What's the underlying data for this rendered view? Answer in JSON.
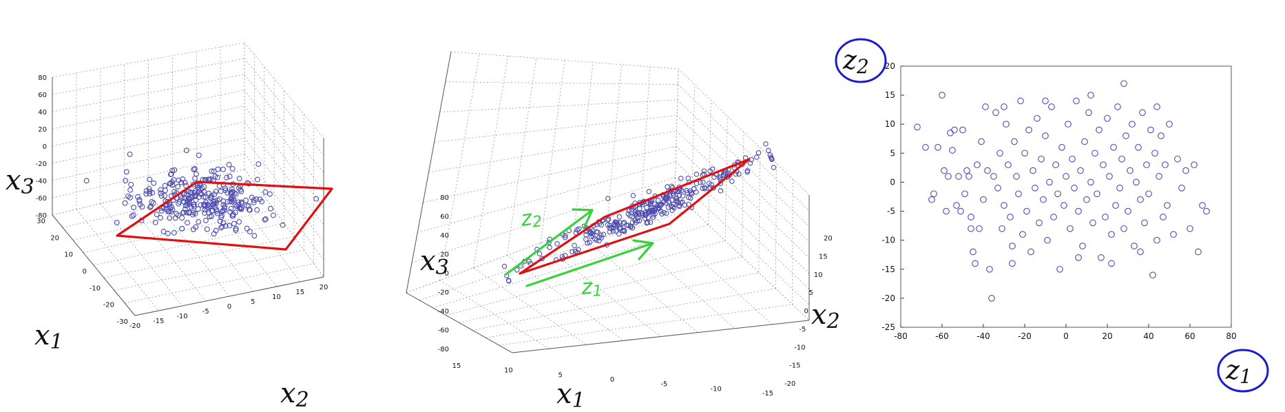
{
  "chart_data": [
    {
      "type": "scatter",
      "subtype": "3d",
      "axis_labels": {
        "x": "x",
        "x_sub": "2",
        "y": "x",
        "y_sub": "1",
        "z": "x",
        "z_sub": "3"
      },
      "xlim": [
        -20,
        20
      ],
      "ylim": [
        -30,
        30
      ],
      "zlim": [
        -80,
        80
      ],
      "x_ticks": [
        "-20",
        "-15",
        "-10",
        "-5",
        "0",
        "5",
        "10",
        "15",
        "20"
      ],
      "y_ticks": [
        "-30",
        "-20",
        "-10",
        "0",
        "10",
        "20",
        "30"
      ],
      "z_ticks": [
        "-80",
        "-60",
        "-40",
        "-20",
        "0",
        "20",
        "40",
        "60",
        "80"
      ],
      "grid": true,
      "annotation": "red outline enclosing flat cloud of points",
      "marker": "open circle",
      "color": "#4b4bb0",
      "n_points": 300
    },
    {
      "type": "scatter",
      "subtype": "3d",
      "axis_labels": {
        "x": "x",
        "x_sub": "1",
        "y": "x",
        "y_sub": "2",
        "z": "x",
        "z_sub": "3"
      },
      "xlim": [
        -15,
        15
      ],
      "ylim": [
        -20,
        20
      ],
      "zlim": [
        -80,
        80
      ],
      "x_ticks": [
        "15",
        "10",
        "5",
        "0",
        "-5",
        "-10",
        "-15"
      ],
      "y_ticks": [
        "-20",
        "-15",
        "-10",
        "-5",
        "0",
        "5",
        "10",
        "15",
        "20"
      ],
      "z_ticks": [
        "80",
        "60",
        "40",
        "20",
        "0",
        "-20",
        "-40",
        "-60",
        "-80"
      ],
      "grid": true,
      "annotations": [
        "z",
        "z"
      ],
      "annotation_subs": [
        "2",
        "1"
      ],
      "marker": "open circle",
      "color": "#4b4bb0",
      "n_points": 300
    },
    {
      "type": "scatter",
      "axis_labels": {
        "x": "z",
        "x_sub": "1",
        "y": "z",
        "y_sub": "2"
      },
      "xlim": [
        -80,
        80
      ],
      "ylim": [
        -25,
        20
      ],
      "x_ticks": [
        "-80",
        "-60",
        "-40",
        "-20",
        "0",
        "20",
        "40",
        "60",
        "80"
      ],
      "y_ticks": [
        "20",
        "15",
        "10",
        "5",
        "0",
        "-5",
        "-10",
        "-15",
        "-20",
        "-25"
      ],
      "grid": false,
      "marker": "open circle",
      "color": "#4b4bb0",
      "points": [
        [
          -72,
          9.5
        ],
        [
          -68,
          6
        ],
        [
          -65,
          -3
        ],
        [
          -64,
          -2
        ],
        [
          -62,
          6
        ],
        [
          -60,
          15
        ],
        [
          -59,
          2
        ],
        [
          -58,
          -5
        ],
        [
          -57,
          1
        ],
        [
          -56,
          8.5
        ],
        [
          -55,
          5.5
        ],
        [
          -54,
          9
        ],
        [
          -53,
          -4
        ],
        [
          -52,
          1
        ],
        [
          -51,
          -5
        ],
        [
          -50,
          9
        ],
        [
          -49,
          -2
        ],
        [
          -48,
          2
        ],
        [
          -47,
          1
        ],
        [
          -46,
          -6
        ],
        [
          -45,
          -12
        ],
        [
          -44,
          -14
        ],
        [
          -43,
          3
        ],
        [
          -42,
          -8
        ],
        [
          -41,
          7
        ],
        [
          -40,
          -3
        ],
        [
          -39,
          13
        ],
        [
          -38,
          2
        ],
        [
          -37,
          -15
        ],
        [
          -36,
          -20
        ],
        [
          -35,
          1
        ],
        [
          -34,
          12
        ],
        [
          -33,
          -1
        ],
        [
          -32,
          5
        ],
        [
          -31,
          -8
        ],
        [
          -30,
          -4
        ],
        [
          -29,
          10
        ],
        [
          -28,
          3
        ],
        [
          -27,
          -6
        ],
        [
          -26,
          -11
        ],
        [
          -25,
          7
        ],
        [
          -24,
          1
        ],
        [
          -23,
          -2
        ],
        [
          -22,
          14
        ],
        [
          -21,
          -9
        ],
        [
          -20,
          5
        ],
        [
          -19,
          -5
        ],
        [
          -18,
          9
        ],
        [
          -17,
          -12
        ],
        [
          -16,
          2
        ],
        [
          -15,
          -1
        ],
        [
          -14,
          11
        ],
        [
          -13,
          -7
        ],
        [
          -12,
          4
        ],
        [
          -11,
          -3
        ],
        [
          -10,
          8
        ],
        [
          -9,
          -10
        ],
        [
          -8,
          0
        ],
        [
          -7,
          13
        ],
        [
          -6,
          -6
        ],
        [
          -5,
          3
        ],
        [
          -4,
          -2
        ],
        [
          -3,
          -15
        ],
        [
          -2,
          6
        ],
        [
          -1,
          -4
        ],
        [
          0,
          1
        ],
        [
          1,
          10
        ],
        [
          2,
          -8
        ],
        [
          3,
          4
        ],
        [
          4,
          -1
        ],
        [
          5,
          14
        ],
        [
          6,
          -5
        ],
        [
          7,
          2
        ],
        [
          8,
          -11
        ],
        [
          9,
          7
        ],
        [
          10,
          -3
        ],
        [
          11,
          12
        ],
        [
          12,
          0
        ],
        [
          13,
          -7
        ],
        [
          14,
          5
        ],
        [
          15,
          -2
        ],
        [
          16,
          9
        ],
        [
          17,
          -13
        ],
        [
          18,
          3
        ],
        [
          19,
          -6
        ],
        [
          20,
          11
        ],
        [
          21,
          1
        ],
        [
          22,
          -9
        ],
        [
          23,
          6
        ],
        [
          24,
          -4
        ],
        [
          25,
          13
        ],
        [
          26,
          -1
        ],
        [
          27,
          4
        ],
        [
          28,
          -8
        ],
        [
          29,
          8
        ],
        [
          30,
          -5
        ],
        [
          31,
          2
        ],
        [
          32,
          10
        ],
        [
          33,
          -11
        ],
        [
          34,
          0
        ],
        [
          35,
          6
        ],
        [
          36,
          -3
        ],
        [
          37,
          12
        ],
        [
          38,
          -7
        ],
        [
          39,
          3
        ],
        [
          40,
          -2
        ],
        [
          41,
          9
        ],
        [
          42,
          -16
        ],
        [
          43,
          5
        ],
        [
          44,
          -10
        ],
        [
          45,
          1
        ],
        [
          46,
          8
        ],
        [
          47,
          -6
        ],
        [
          48,
          3
        ],
        [
          49,
          -4
        ],
        [
          50,
          10
        ],
        [
          52,
          -9
        ],
        [
          54,
          4
        ],
        [
          56,
          -1
        ],
        [
          58,
          2
        ],
        [
          60,
          -8
        ],
        [
          62,
          3
        ],
        [
          64,
          -12
        ],
        [
          66,
          -4
        ],
        [
          68,
          -5
        ],
        [
          -30,
          13
        ],
        [
          -10,
          14
        ],
        [
          12,
          15
        ],
        [
          28,
          17
        ],
        [
          44,
          13
        ],
        [
          -46,
          -8
        ],
        [
          -26,
          -14
        ],
        [
          6,
          -13
        ],
        [
          22,
          -14
        ],
        [
          36,
          -12
        ]
      ]
    }
  ]
}
